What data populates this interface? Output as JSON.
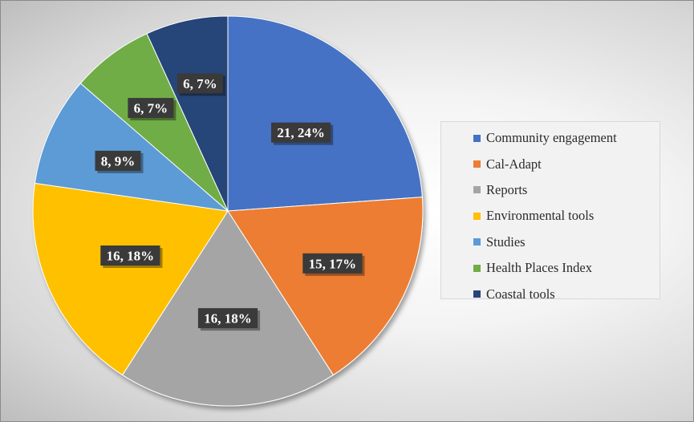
{
  "chart_data": {
    "type": "pie",
    "title": "",
    "start_angle_deg": 0,
    "direction": "clockwise",
    "slices": [
      {
        "name": "Community engagement",
        "value": 21,
        "percent": "24%",
        "label": "21, 24%",
        "color": "#4472C4"
      },
      {
        "name": "Cal-Adapt",
        "value": 15,
        "percent": "17%",
        "label": "15, 17%",
        "color": "#ED7D31"
      },
      {
        "name": "Reports",
        "value": 16,
        "percent": "18%",
        "label": "16, 18%",
        "color": "#A5A5A5"
      },
      {
        "name": "Environmental tools",
        "value": 16,
        "percent": "18%",
        "label": "16, 18%",
        "color": "#FFC000"
      },
      {
        "name": "Studies",
        "value": 8,
        "percent": "9%",
        "label": "8, 9%",
        "color": "#5B9BD5"
      },
      {
        "name": "Health Places Index",
        "value": 6,
        "percent": "7%",
        "label": "6, 7%",
        "color": "#70AD47"
      },
      {
        "name": "Coastal tools",
        "value": 6,
        "percent": "7%",
        "label": "6, 7%",
        "color": "#264478"
      }
    ],
    "legend_placement": "right"
  }
}
